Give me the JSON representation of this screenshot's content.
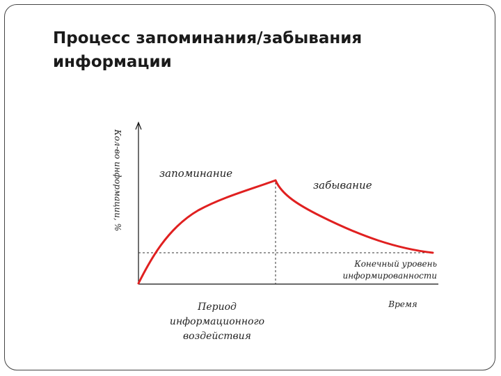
{
  "slide": {
    "title_line1": "Процесс запоминания/забывания",
    "title_line2": "информации"
  },
  "diagram": {
    "y_axis_label": "Кол-во информации, %",
    "phase_memorization": "запоминание",
    "phase_forgetting": "забывание",
    "final_level_line1": "Конечный уровень",
    "final_level_line2": "информированности",
    "exposure_line1": "Период",
    "exposure_line2": "информационного",
    "exposure_line3": "воздействия",
    "x_axis_label": "Время",
    "colors": {
      "curve": "#e02020",
      "axis": "#111111",
      "guide": "#333333"
    }
  }
}
